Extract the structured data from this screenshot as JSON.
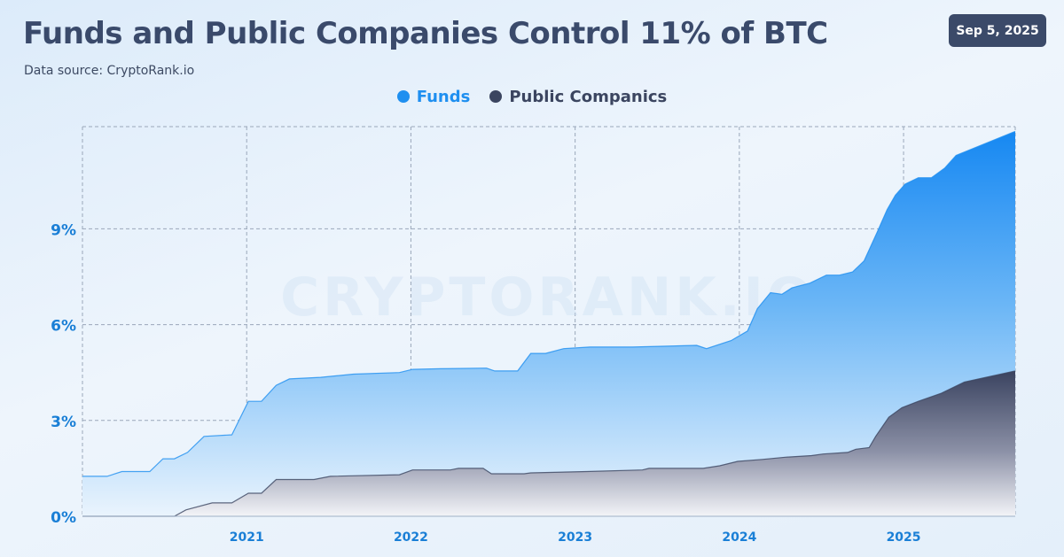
{
  "header": {
    "title": "Funds and Public Companies Control 11% of BTC",
    "source": "Data source: CryptoRank.io",
    "date": "Sep 5, 2025"
  },
  "watermark": "CRYPTORANK.IO",
  "colors": {
    "funds": "#1e8ff0",
    "public": "#3b4560",
    "axis_label": "#1a7fd6",
    "grid": "#9aa7ba"
  },
  "chart_data": {
    "type": "area",
    "title": "Funds and Public Companies Control 11% of BTC",
    "xlabel": "",
    "ylabel": "",
    "xlim": [
      2020.0,
      2025.68
    ],
    "ylim": [
      0,
      12.2
    ],
    "x_ticks": [
      2021,
      2022,
      2023,
      2024,
      2025
    ],
    "x_tick_labels": [
      "2021",
      "2022",
      "2023",
      "2024",
      "2025"
    ],
    "y_ticks": [
      0,
      3,
      6,
      9
    ],
    "y_tick_labels": [
      "0%",
      "3%",
      "6%",
      "9%"
    ],
    "grid": true,
    "legend_position": "top-center",
    "series": [
      {
        "name": "Funds",
        "color": "#1e8ff0",
        "x": [
          2020.0,
          2020.15,
          2020.24,
          2020.41,
          2020.49,
          2020.56,
          2020.64,
          2020.74,
          2020.91,
          2021.01,
          2021.09,
          2021.18,
          2021.26,
          2021.45,
          2021.65,
          2021.93,
          2022.01,
          2022.18,
          2022.46,
          2022.51,
          2022.65,
          2022.73,
          2022.82,
          2022.93,
          2023.09,
          2023.35,
          2023.74,
          2023.8,
          2023.95,
          2024.05,
          2024.11,
          2024.19,
          2024.26,
          2024.32,
          2024.43,
          2024.53,
          2024.61,
          2024.69,
          2024.76,
          2024.84,
          2024.9,
          2024.95,
          2025.01,
          2025.09,
          2025.17,
          2025.25,
          2025.32,
          2025.68
        ],
        "values": [
          1.25,
          1.25,
          1.4,
          1.4,
          1.8,
          1.8,
          2.0,
          2.5,
          2.55,
          3.6,
          3.6,
          4.1,
          4.3,
          4.35,
          4.45,
          4.5,
          4.6,
          4.62,
          4.64,
          4.55,
          4.55,
          5.1,
          5.1,
          5.25,
          5.3,
          5.3,
          5.35,
          5.25,
          5.5,
          5.8,
          6.5,
          7.0,
          6.95,
          7.15,
          7.3,
          7.55,
          7.55,
          7.65,
          8.0,
          8.9,
          9.6,
          10.05,
          10.4,
          10.6,
          10.6,
          10.9,
          11.3,
          12.05
        ]
      },
      {
        "name": "Public Companics",
        "color": "#3b4560",
        "x": [
          2020.0,
          2020.56,
          2020.63,
          2020.79,
          2020.91,
          2021.01,
          2021.09,
          2021.18,
          2021.41,
          2021.51,
          2021.93,
          2022.01,
          2022.24,
          2022.29,
          2022.44,
          2022.49,
          2022.69,
          2022.73,
          2023.07,
          2023.41,
          2023.45,
          2023.68,
          2023.78,
          2023.88,
          2023.99,
          2024.14,
          2024.28,
          2024.44,
          2024.51,
          2024.66,
          2024.71,
          2024.79,
          2024.83,
          2024.91,
          2024.99,
          2025.09,
          2025.23,
          2025.37,
          2025.68
        ],
        "values": [
          0.0,
          0.0,
          0.2,
          0.42,
          0.42,
          0.72,
          0.72,
          1.15,
          1.15,
          1.25,
          1.3,
          1.45,
          1.45,
          1.5,
          1.5,
          1.33,
          1.33,
          1.36,
          1.4,
          1.45,
          1.5,
          1.5,
          1.5,
          1.58,
          1.72,
          1.78,
          1.85,
          1.9,
          1.95,
          2.0,
          2.1,
          2.15,
          2.5,
          3.1,
          3.4,
          3.6,
          3.85,
          4.2,
          4.55
        ]
      }
    ]
  }
}
